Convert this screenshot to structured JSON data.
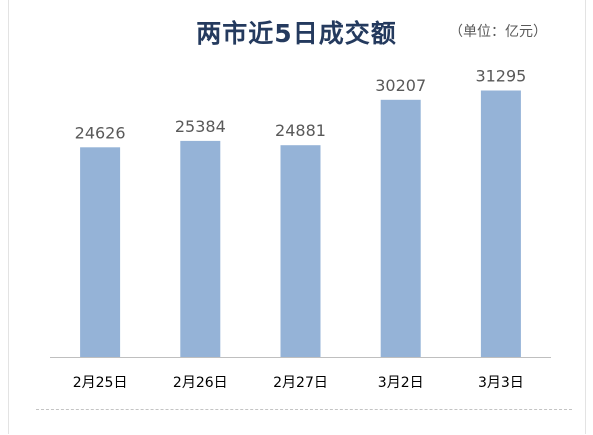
{
  "chart_data": {
    "type": "bar",
    "title": "两市近5日成交额",
    "unit_label": "（单位：亿元）",
    "categories": [
      "2月25日",
      "2月26日",
      "2月27日",
      "3月2日",
      "3月3日"
    ],
    "values": [
      24626,
      25384,
      24881,
      30207,
      31295
    ],
    "ylim": [
      0,
      35000
    ],
    "xlabel": "",
    "ylabel": "",
    "grid": false,
    "data_labels": true,
    "colors": {
      "bar": "#95b3d7",
      "axis": "#bfbfbf"
    }
  }
}
